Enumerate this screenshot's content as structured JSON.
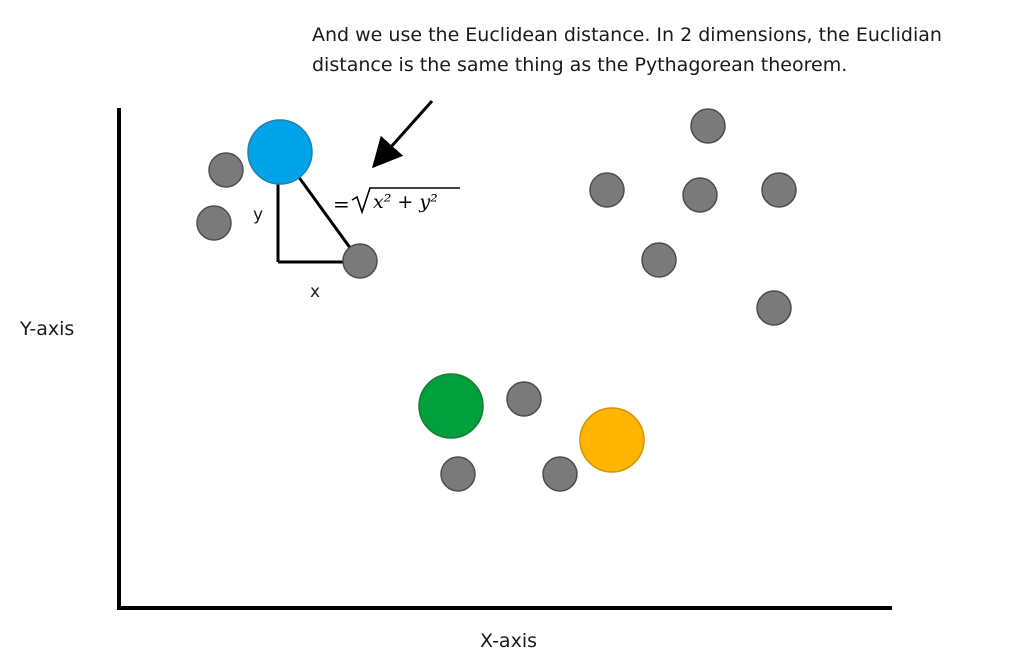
{
  "caption": {
    "line1": "And we use the Euclidean distance. In 2 dimensions, the Euclidian",
    "line2": "distance is the same thing as the Pythagorean theorem."
  },
  "axes": {
    "y_label": "Y-axis",
    "x_label": "X-axis"
  },
  "triangle": {
    "y_label": "y",
    "x_label": "x"
  },
  "formula": {
    "equals": "=",
    "radicand": "x² + y²"
  },
  "colors": {
    "query_point": "#00a2e8",
    "green_point": "#00a03c",
    "orange_point": "#ffb400",
    "gray_point": "#7a7a7a",
    "gray_stroke": "#4d4d4d"
  }
}
